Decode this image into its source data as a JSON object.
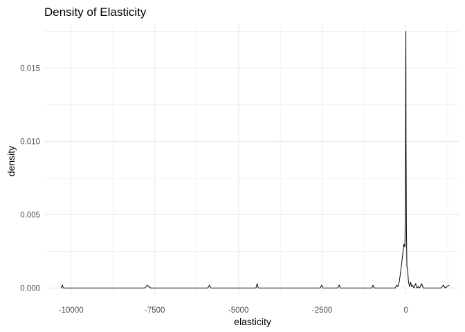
{
  "chart_data": {
    "type": "line",
    "title": "Density of Elasticity",
    "xlabel": "elasticity",
    "ylabel": "density",
    "xlim": [
      -10800,
      1600
    ],
    "ylim": [
      -0.0005,
      0.018
    ],
    "x_ticks": [
      -10000,
      -7500,
      -5000,
      -2500,
      0
    ],
    "x_tick_labels": [
      "-10000",
      "-7500",
      "-5000",
      "-2500",
      "0"
    ],
    "y_ticks": [
      0.0,
      0.005,
      0.01,
      0.015
    ],
    "y_tick_labels": [
      "0.000",
      "0.005",
      "0.010",
      "0.015"
    ],
    "grid": true,
    "legend": "none",
    "series": [
      {
        "color": "#000000",
        "x": [
          -10300,
          -10260,
          -10230,
          -10180,
          -7800,
          -7720,
          -7680,
          -7620,
          -7540,
          -5920,
          -5860,
          -5830,
          -5780,
          -4480,
          -4440,
          -4410,
          -4380,
          -4330,
          -2560,
          -2510,
          -2480,
          -2430,
          -2040,
          -1990,
          -1960,
          -1910,
          -1020,
          -980,
          -950,
          -900,
          -320,
          -270,
          -240,
          -200,
          -150,
          -100,
          -60,
          -30,
          -15,
          -5,
          0,
          5,
          15,
          30,
          55,
          80,
          110,
          140,
          170,
          200,
          240,
          290,
          330,
          370,
          410,
          470,
          520,
          570,
          1050,
          1120,
          1170,
          1230,
          1300
        ],
        "y": [
          0,
          0.0002,
          0,
          0,
          0,
          0.0002,
          0.0001,
          0,
          0,
          0,
          0.0002,
          0,
          0,
          0,
          0.0003,
          0,
          0,
          0,
          0,
          0.0002,
          0,
          0,
          0,
          0.0002,
          0,
          0,
          0,
          0.0002,
          0,
          0,
          0,
          0.0002,
          0.0001,
          0.0004,
          0.0012,
          0.0022,
          0.003,
          0.0028,
          0.006,
          0.0155,
          0.0175,
          0.0102,
          0.0045,
          0.0015,
          0.0011,
          0.0004,
          0.0001,
          0.0004,
          0.0001,
          0.0002,
          0,
          0.0003,
          0,
          0.0001,
          0,
          0.0003,
          0,
          0,
          0,
          0.0002,
          0,
          0.0001,
          0.0002
        ]
      }
    ]
  },
  "colors": {
    "background": "#ffffff",
    "grid": "#ebebeb",
    "line": "#000000",
    "tick_text": "#4d4d4d"
  }
}
